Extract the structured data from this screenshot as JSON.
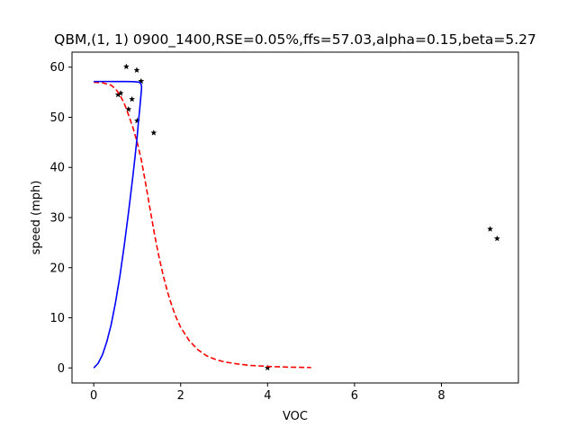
{
  "chart_data": {
    "type": "scatter",
    "title": "QBM,(1, 1) 0900_1400,RSE=0.05%,ffs=57.03,alpha=0.15,beta=5.27",
    "xlabel": "VOC",
    "ylabel": "speed (mph)",
    "xlim": [
      -0.5,
      9.77
    ],
    "ylim": [
      -3.0,
      63.0
    ],
    "xticks": [
      0,
      2,
      4,
      6,
      8
    ],
    "yticks": [
      0,
      10,
      20,
      30,
      40,
      50,
      60
    ],
    "grid": false,
    "legend": "none",
    "series": [
      {
        "kind": "scatter",
        "color": "#000000",
        "marker": "star",
        "points": [
          [
            0.75,
            60.1
          ],
          [
            0.99,
            59.4
          ],
          [
            1.09,
            57.2
          ],
          [
            0.62,
            54.8
          ],
          [
            0.56,
            54.5
          ],
          [
            0.88,
            53.6
          ],
          [
            0.8,
            51.6
          ],
          [
            1.0,
            49.3
          ],
          [
            1.38,
            46.9
          ],
          [
            9.12,
            27.7
          ],
          [
            9.28,
            25.8
          ],
          [
            4.0,
            0.0
          ]
        ]
      },
      {
        "kind": "line",
        "color": "#ff0000",
        "style": "dashed",
        "ffs": 57.03,
        "x": [
          0.0,
          0.2,
          0.4,
          0.5,
          0.6,
          0.7,
          0.8,
          0.9,
          1.0,
          1.1,
          1.2,
          1.3,
          1.4,
          1.5,
          1.6,
          1.7,
          1.8,
          1.9,
          2.0,
          2.2,
          2.4,
          2.6,
          2.8,
          3.0,
          3.3,
          3.6,
          4.0,
          4.5,
          5.0
        ],
        "y": [
          57.0,
          56.9,
          56.4,
          55.7,
          54.5,
          52.8,
          50.5,
          48.0,
          45.0,
          41.3,
          36.5,
          31.5,
          26.6,
          22.2,
          18.4,
          15.1,
          12.3,
          10.0,
          8.1,
          5.4,
          3.6,
          2.4,
          1.7,
          1.2,
          0.8,
          0.5,
          0.3,
          0.15,
          0.08
        ]
      },
      {
        "kind": "line",
        "color": "#0000ff",
        "style": "solid",
        "x": [
          0.0,
          0.1,
          0.2,
          0.3,
          0.4,
          0.5,
          0.6,
          0.7,
          0.8,
          0.9,
          0.95,
          1.0,
          1.03,
          1.06,
          1.08,
          1.1,
          1.1,
          1.09,
          1.07,
          1.04,
          1.0,
          0.95,
          0.88,
          0.75,
          0.55,
          0.3,
          0.0
        ],
        "y": [
          0.0,
          0.9,
          2.6,
          5.2,
          8.6,
          13.0,
          18.2,
          24.3,
          31.0,
          38.2,
          42.1,
          46.2,
          49.2,
          51.8,
          53.8,
          55.7,
          56.2,
          56.6,
          56.85,
          57.0,
          57.05,
          57.1,
          57.12,
          57.13,
          57.14,
          57.15,
          57.15
        ]
      }
    ]
  }
}
